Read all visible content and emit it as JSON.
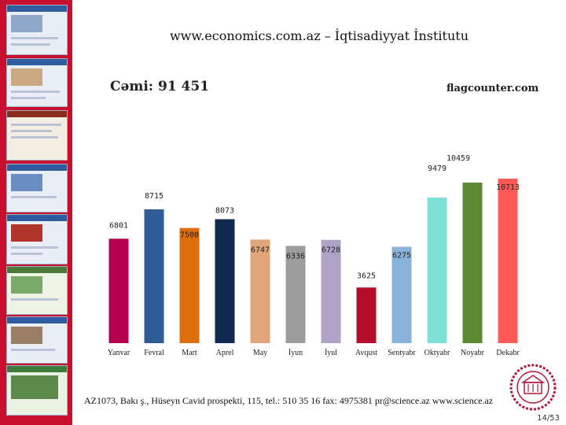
{
  "header": {
    "title": "www.economics.com.az – İqtisadiyyat İnstitutu"
  },
  "summary": {
    "total": "Cəmi: 91 451",
    "source": "flagcounter.com"
  },
  "chart_data": {
    "type": "bar",
    "categories": [
      "Yanvar",
      "Fevral",
      "Mart",
      "Aprel",
      "May",
      "İyun",
      "İyul",
      "Avqust",
      "Sentyabr",
      "Oktyabr",
      "Noyabr",
      "Dekabr"
    ],
    "values": [
      6801,
      8715,
      7500,
      8073,
      6747,
      6336,
      6728,
      3625,
      6275,
      9479,
      10459,
      10713
    ],
    "colors": [
      "#b5004f",
      "#2f5c97",
      "#e06d0c",
      "#10294d",
      "#e2a57a",
      "#9d9d9d",
      "#b0a3c8",
      "#b40f2a",
      "#8ab3d9",
      "#7fe0d8",
      "#5b8a33",
      "#ff5a55"
    ],
    "ylim": [
      0,
      10713
    ],
    "title": "",
    "xlabel": "",
    "ylabel": ""
  },
  "footer": {
    "address": "AZ1073, Bakı ş., Hüseyn Cavid prospekti, 115, tel.: 510 35 16 fax: 4975381 pr@science.az www.science.az",
    "page": "14/53"
  }
}
